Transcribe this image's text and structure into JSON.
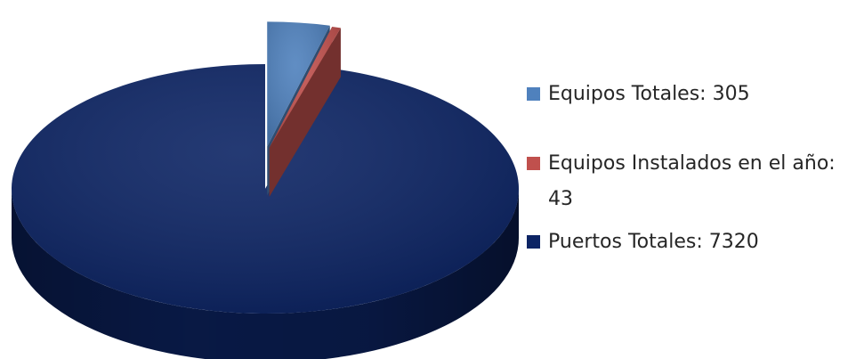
{
  "chart_data": {
    "type": "pie",
    "title": "",
    "slices": [
      {
        "label": "Equipos Totales",
        "value": 305,
        "color": "#4f81bd"
      },
      {
        "label": "Equipos Instalados en el año",
        "value": 43,
        "color": "#c0504d"
      },
      {
        "label": "Puertos Totales",
        "value": 7320,
        "color": "#0c2464"
      }
    ],
    "legend": {
      "placement": "right",
      "entries": [
        "Equipos Totales: 305",
        "Equipos Instalados en el año: 43",
        "Puertos Totales: 7320"
      ]
    },
    "style": "3d-exploded"
  }
}
